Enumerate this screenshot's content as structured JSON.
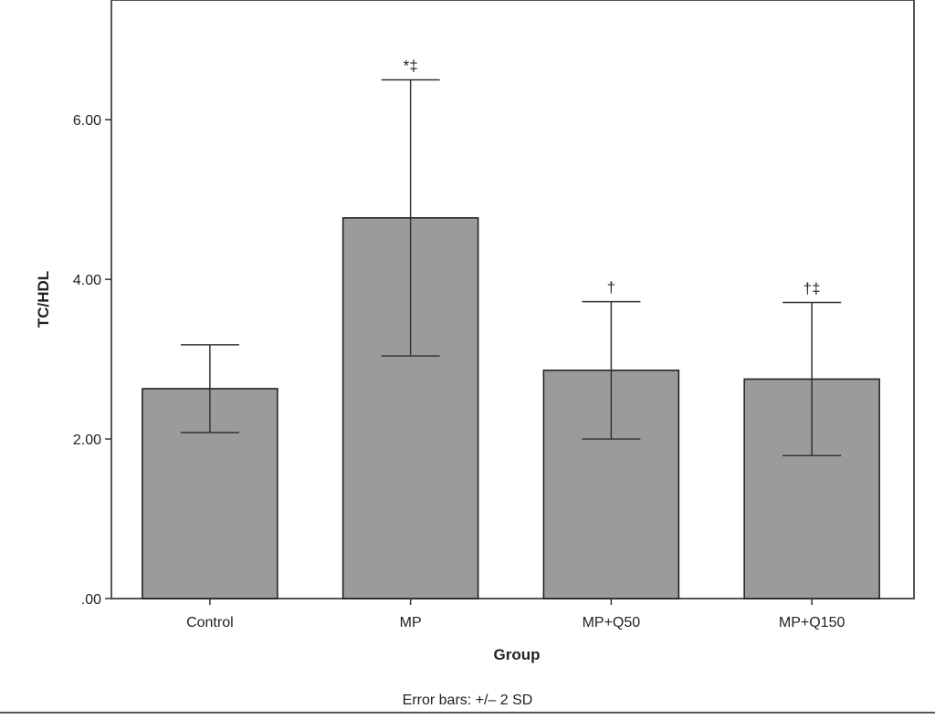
{
  "chart_data": {
    "type": "bar",
    "categories": [
      "Control",
      "MP",
      "MP+Q50",
      "MP+Q150"
    ],
    "values": [
      2.63,
      4.77,
      2.86,
      2.75
    ],
    "error_bars": {
      "lower": [
        2.08,
        3.04,
        2.0,
        1.79
      ],
      "upper": [
        3.18,
        6.5,
        3.72,
        3.71
      ]
    },
    "annotations": [
      "",
      "*‡",
      "†",
      "†‡"
    ],
    "xlabel": "Group",
    "ylabel": "TC/HDL",
    "ylim": [
      0,
      7.5
    ],
    "yticks": [
      0,
      2,
      4,
      6
    ],
    "ytick_labels": [
      ".00",
      "2.00",
      "4.00",
      "6.00"
    ],
    "footnote": "Error bars: +/– 2 SD",
    "grid": false,
    "colors": {
      "bar_fill": "#9b9b9b",
      "bar_stroke": "#1a1a1a",
      "axis": "#333333"
    }
  }
}
